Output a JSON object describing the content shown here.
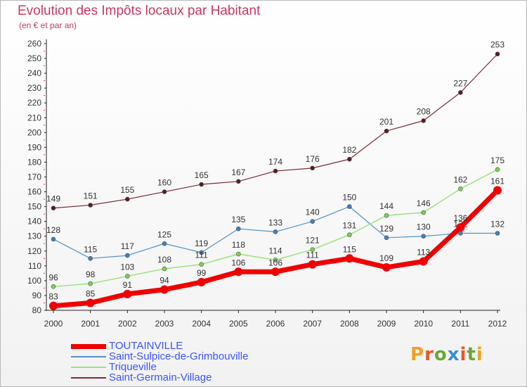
{
  "title": "Evolution des Impôts locaux par Habitant",
  "subtitle": "(en € et par an)",
  "logo": {
    "text": "Proxiti",
    "letter_colors": [
      "#f0a020",
      "#e8552a",
      "#6aa63a",
      "#3a8fd6",
      "#e8552a",
      "#6aa63a",
      "#f0a020"
    ]
  },
  "chart_data": {
    "type": "line",
    "categories": [
      "2000",
      "2001",
      "2002",
      "2003",
      "2004",
      "2005",
      "2006",
      "2007",
      "2008",
      "2009",
      "2010",
      "2011",
      "2012"
    ],
    "ylim": [
      80,
      260
    ],
    "yticks": [
      80,
      90,
      100,
      110,
      120,
      130,
      140,
      150,
      160,
      170,
      180,
      190,
      200,
      210,
      220,
      230,
      240,
      250,
      260
    ],
    "grid": false,
    "legend_position": "bottom-left",
    "series": [
      {
        "name": "Saint-Germain-Village",
        "color": "#7a2a36",
        "marker": "#5a1a22",
        "width": 1.2,
        "radius": 3,
        "values": [
          149,
          151,
          155,
          160,
          165,
          167,
          174,
          176,
          182,
          201,
          208,
          227,
          253
        ]
      },
      {
        "name": "Saint-Sulpice-de-Grimbouville",
        "color": "#4f92c9",
        "marker": "#3f7fbf",
        "width": 1.2,
        "radius": 3,
        "values": [
          128,
          115,
          117,
          125,
          119,
          135,
          133,
          140,
          150,
          129,
          130,
          132,
          132
        ]
      },
      {
        "name": "Triqueville",
        "color": "#9be37a",
        "marker": "#7ad34e",
        "width": 1.5,
        "radius": 3,
        "values": [
          96,
          98,
          103,
          108,
          111,
          118,
          114,
          121,
          131,
          144,
          146,
          162,
          175
        ]
      },
      {
        "name": "TOUTAINVILLE",
        "color": "#f00000",
        "marker": "#f00000",
        "width": 7,
        "radius": 6,
        "values": [
          83,
          85,
          91,
          94,
          99,
          106,
          106,
          111,
          115,
          109,
          113,
          136,
          161
        ]
      }
    ],
    "legend_order": [
      "TOUTAINVILLE",
      "Saint-Sulpice-de-Grimbouville",
      "Triqueville",
      "Saint-Germain-Village"
    ]
  }
}
